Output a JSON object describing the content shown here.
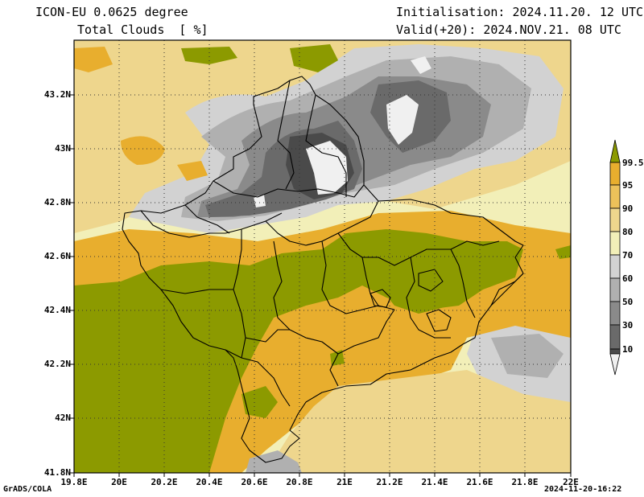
{
  "header": {
    "model_line": "ICON-EU 0.0625 degree",
    "field_line": "Total Clouds  [ %]",
    "init_line": "Initialisation: 2024.11.20. 12 UTC",
    "valid_line": "Valid(+20): 2024.NOV.21. 08 UTC"
  },
  "footer": {
    "credit": "GrADS/COLA",
    "timestamp": "2024-11-20-16:22"
  },
  "axes": {
    "y_ticks": [
      "43.2N",
      "43N",
      "42.8N",
      "42.6N",
      "42.4N",
      "42.2N",
      "42N",
      "41.8N"
    ],
    "x_ticks": [
      "19.8E",
      "20E",
      "20.2E",
      "20.4E",
      "20.6E",
      "20.8E",
      "21E",
      "21.2E",
      "21.4E",
      "21.6E",
      "21.8E",
      "22E"
    ]
  },
  "colorbar": {
    "labels": [
      "99.5",
      "95",
      "90",
      "80",
      "70",
      "60",
      "50",
      "30",
      "10"
    ],
    "colors": [
      "#8c9a00",
      "#e8ae2e",
      "#ecc15a",
      "#eed68d",
      "#f2efb8",
      "#d2d2d2",
      "#b0b0b0",
      "#8a8a8a",
      "#6a6a6a",
      "#4a4a4a",
      "#f0f0f0"
    ]
  }
}
